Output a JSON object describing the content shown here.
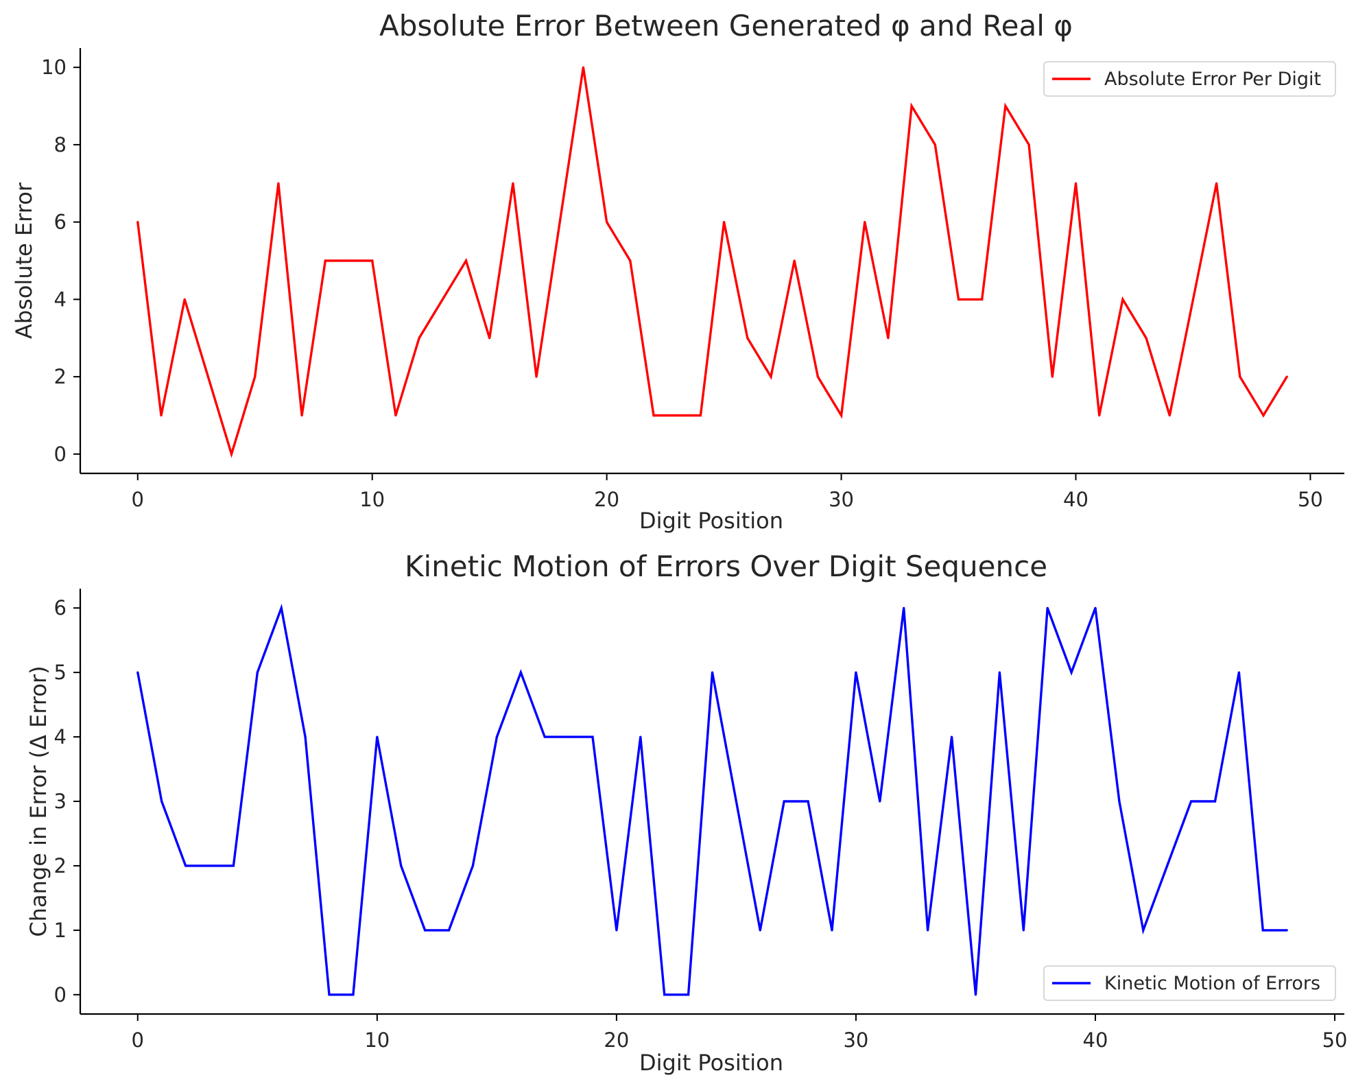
{
  "chart_data": [
    {
      "type": "line",
      "title": "Absolute Error Between Generated φ and Real φ",
      "xlabel": "Digit Position",
      "ylabel": "Absolute Error",
      "xlim": [
        -2.45,
        51.45
      ],
      "ylim": [
        -0.5,
        10.5
      ],
      "xticks": [
        0,
        10,
        20,
        30,
        40,
        50
      ],
      "yticks": [
        0,
        2,
        4,
        6,
        8,
        10
      ],
      "legend": "top-right",
      "grid": false,
      "series": [
        {
          "name": "Absolute Error Per Digit",
          "color": "#ff0000",
          "x": [
            0,
            1,
            2,
            3,
            4,
            5,
            6,
            7,
            8,
            9,
            10,
            11,
            12,
            13,
            14,
            15,
            16,
            17,
            18,
            19,
            20,
            21,
            22,
            23,
            24,
            25,
            26,
            27,
            28,
            29,
            30,
            31,
            32,
            33,
            34,
            35,
            36,
            37,
            38,
            39,
            40,
            41,
            42,
            43,
            44,
            45,
            46,
            47,
            48,
            49
          ],
          "y": [
            6,
            1,
            4,
            2,
            0,
            2,
            7,
            1,
            5,
            5,
            5,
            1,
            3,
            4,
            5,
            3,
            7,
            2,
            6,
            10,
            6,
            5,
            1,
            1,
            1,
            6,
            3,
            2,
            5,
            2,
            1,
            6,
            3,
            9,
            8,
            4,
            4,
            9,
            8,
            2,
            7,
            1,
            4,
            3,
            1,
            4,
            7,
            2,
            1,
            2
          ]
        }
      ]
    },
    {
      "type": "line",
      "title": "Kinetic Motion of Errors Over Digit Sequence",
      "xlabel": "Digit Position",
      "ylabel": "Change in Error (Δ Error)",
      "xlim": [
        -2.4,
        50.4
      ],
      "ylim": [
        -0.3,
        6.3
      ],
      "xticks": [
        0,
        10,
        20,
        30,
        40,
        50
      ],
      "yticks": [
        0,
        1,
        2,
        3,
        4,
        5,
        6
      ],
      "legend": "bottom-right",
      "grid": false,
      "series": [
        {
          "name": "Kinetic Motion of Errors",
          "color": "#0000ff",
          "x": [
            0,
            1,
            2,
            3,
            4,
            5,
            6,
            7,
            8,
            9,
            10,
            11,
            12,
            13,
            14,
            15,
            16,
            17,
            18,
            19,
            20,
            21,
            22,
            23,
            24,
            25,
            26,
            27,
            28,
            29,
            30,
            31,
            32,
            33,
            34,
            35,
            36,
            37,
            38,
            39,
            40,
            41,
            42,
            43,
            44,
            45,
            46,
            47,
            48
          ],
          "y": [
            5,
            3,
            2,
            2,
            2,
            5,
            6,
            4,
            0,
            0,
            4,
            2,
            1,
            1,
            2,
            4,
            5,
            4,
            4,
            4,
            1,
            4,
            0,
            0,
            5,
            3,
            1,
            3,
            3,
            1,
            5,
            3,
            6,
            1,
            4,
            0,
            5,
            1,
            6,
            5,
            6,
            3,
            1,
            2,
            3,
            3,
            5,
            1,
            1
          ]
        }
      ]
    }
  ]
}
